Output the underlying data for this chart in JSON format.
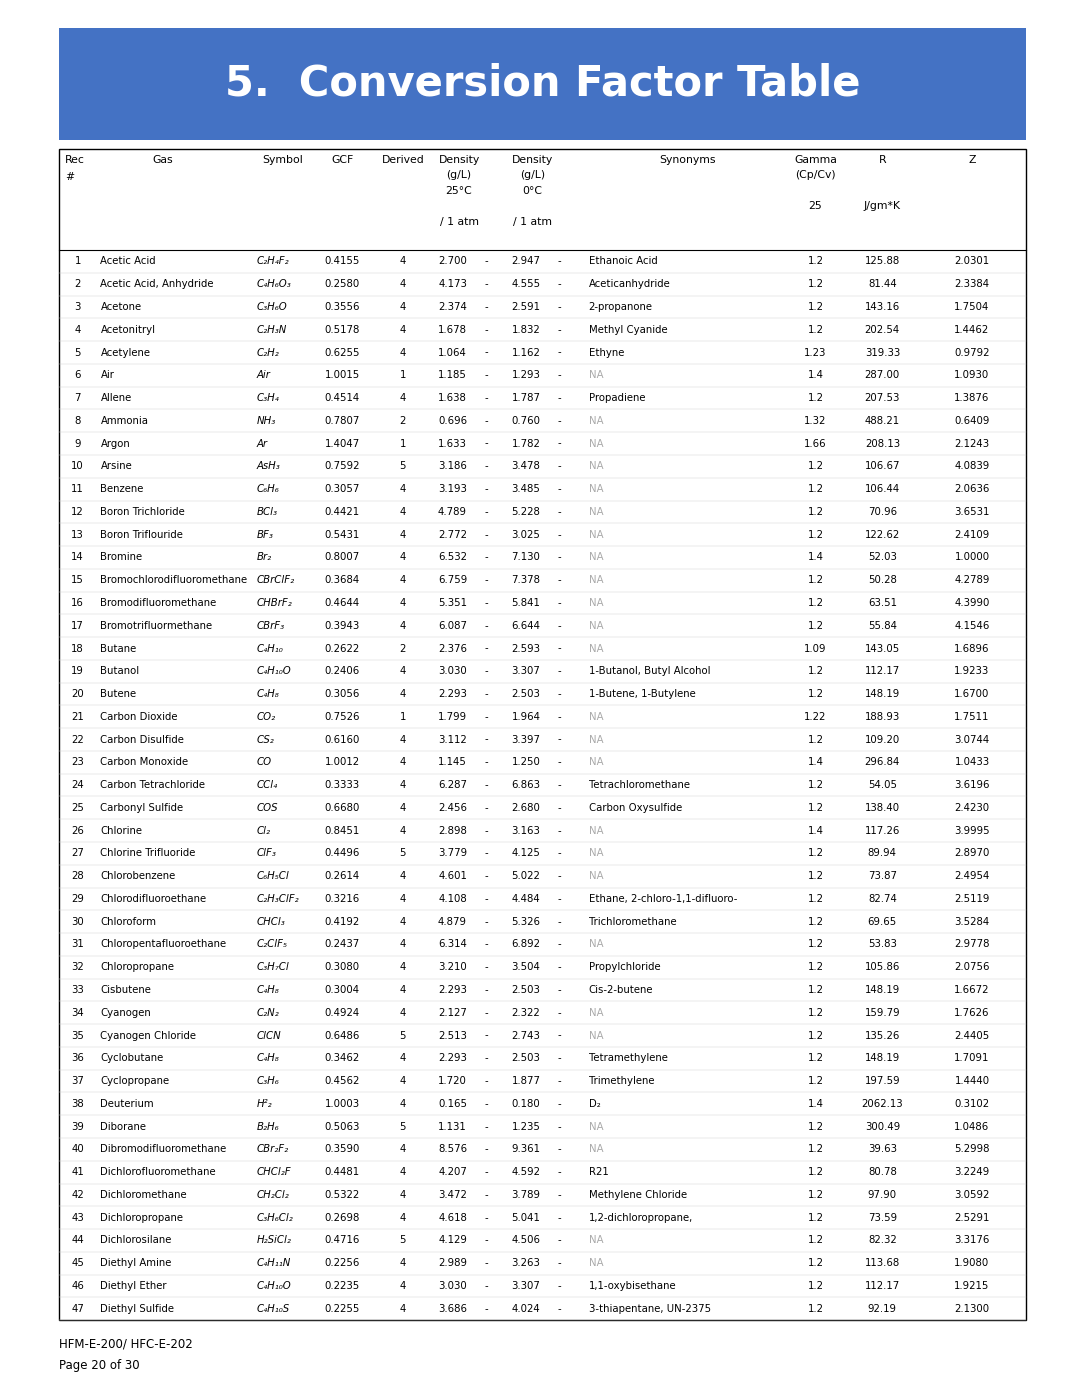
{
  "title": "5.  Conversion Factor Table",
  "title_bg_color": "#4472C4",
  "title_text_color": "#FFFFFF",
  "footer_line1": "HFM-E-200/ HFC-E-202",
  "footer_line2": "Page 20 of 30",
  "rows": [
    [
      1,
      "Acetic Acid",
      "C₂H₄F₂",
      "0.4155",
      "4",
      "2.700",
      "2.947",
      "Ethanoic Acid",
      "1.2",
      "125.88",
      "2.0301"
    ],
    [
      2,
      "Acetic Acid, Anhydride",
      "C₄H₆O₃",
      "0.2580",
      "4",
      "4.173",
      "4.555",
      "Aceticanhydride",
      "1.2",
      "81.44",
      "2.3384"
    ],
    [
      3,
      "Acetone",
      "C₃H₆O",
      "0.3556",
      "4",
      "2.374",
      "2.591",
      "2-propanone",
      "1.2",
      "143.16",
      "1.7504"
    ],
    [
      4,
      "Acetonitryl",
      "C₂H₃N",
      "0.5178",
      "4",
      "1.678",
      "1.832",
      "Methyl Cyanide",
      "1.2",
      "202.54",
      "1.4462"
    ],
    [
      5,
      "Acetylene",
      "C₂H₂",
      "0.6255",
      "4",
      "1.064",
      "1.162",
      "Ethyne",
      "1.23",
      "319.33",
      "0.9792"
    ],
    [
      6,
      "Air",
      "Air",
      "1.0015",
      "1",
      "1.185",
      "1.293",
      "NA",
      "1.4",
      "287.00",
      "1.0930"
    ],
    [
      7,
      "Allene",
      "C₃H₄",
      "0.4514",
      "4",
      "1.638",
      "1.787",
      "Propadiene",
      "1.2",
      "207.53",
      "1.3876"
    ],
    [
      8,
      "Ammonia",
      "NH₃",
      "0.7807",
      "2",
      "0.696",
      "0.760",
      "NA",
      "1.32",
      "488.21",
      "0.6409"
    ],
    [
      9,
      "Argon",
      "Ar",
      "1.4047",
      "1",
      "1.633",
      "1.782",
      "NA",
      "1.66",
      "208.13",
      "2.1243"
    ],
    [
      10,
      "Arsine",
      "AsH₃",
      "0.7592",
      "5",
      "3.186",
      "3.478",
      "NA",
      "1.2",
      "106.67",
      "4.0839"
    ],
    [
      11,
      "Benzene",
      "C₆H₆",
      "0.3057",
      "4",
      "3.193",
      "3.485",
      "NA",
      "1.2",
      "106.44",
      "2.0636"
    ],
    [
      12,
      "Boron Trichloride",
      "BCl₃",
      "0.4421",
      "4",
      "4.789",
      "5.228",
      "NA",
      "1.2",
      "70.96",
      "3.6531"
    ],
    [
      13,
      "Boron Triflouride",
      "BF₃",
      "0.5431",
      "4",
      "2.772",
      "3.025",
      "NA",
      "1.2",
      "122.62",
      "2.4109"
    ],
    [
      14,
      "Bromine",
      "Br₂",
      "0.8007",
      "4",
      "6.532",
      "7.130",
      "NA",
      "1.4",
      "52.03",
      "1.0000"
    ],
    [
      15,
      "Bromochlorodifluoromethane",
      "CBrClF₂",
      "0.3684",
      "4",
      "6.759",
      "7.378",
      "NA",
      "1.2",
      "50.28",
      "4.2789"
    ],
    [
      16,
      "Bromodifluoromethane",
      "CHBrF₂",
      "0.4644",
      "4",
      "5.351",
      "5.841",
      "NA",
      "1.2",
      "63.51",
      "4.3990"
    ],
    [
      17,
      "Bromotrifluormethane",
      "CBrF₃",
      "0.3943",
      "4",
      "6.087",
      "6.644",
      "NA",
      "1.2",
      "55.84",
      "4.1546"
    ],
    [
      18,
      "Butane",
      "C₄H₁₀",
      "0.2622",
      "2",
      "2.376",
      "2.593",
      "NA",
      "1.09",
      "143.05",
      "1.6896"
    ],
    [
      19,
      "Butanol",
      "C₄H₁₀O",
      "0.2406",
      "4",
      "3.030",
      "3.307",
      "1-Butanol, Butyl Alcohol",
      "1.2",
      "112.17",
      "1.9233"
    ],
    [
      20,
      "Butene",
      "C₄H₈",
      "0.3056",
      "4",
      "2.293",
      "2.503",
      "1-Butene, 1-Butylene",
      "1.2",
      "148.19",
      "1.6700"
    ],
    [
      21,
      "Carbon Dioxide",
      "CO₂",
      "0.7526",
      "1",
      "1.799",
      "1.964",
      "NA",
      "1.22",
      "188.93",
      "1.7511"
    ],
    [
      22,
      "Carbon Disulfide",
      "CS₂",
      "0.6160",
      "4",
      "3.112",
      "3.397",
      "NA",
      "1.2",
      "109.20",
      "3.0744"
    ],
    [
      23,
      "Carbon Monoxide",
      "CO",
      "1.0012",
      "4",
      "1.145",
      "1.250",
      "NA",
      "1.4",
      "296.84",
      "1.0433"
    ],
    [
      24,
      "Carbon Tetrachloride",
      "CCl₄",
      "0.3333",
      "4",
      "6.287",
      "6.863",
      "Tetrachloromethane",
      "1.2",
      "54.05",
      "3.6196"
    ],
    [
      25,
      "Carbonyl Sulfide",
      "COS",
      "0.6680",
      "4",
      "2.456",
      "2.680",
      "Carbon Oxysulfide",
      "1.2",
      "138.40",
      "2.4230"
    ],
    [
      26,
      "Chlorine",
      "Cl₂",
      "0.8451",
      "4",
      "2.898",
      "3.163",
      "NA",
      "1.4",
      "117.26",
      "3.9995"
    ],
    [
      27,
      "Chlorine Trifluoride",
      "ClF₃",
      "0.4496",
      "5",
      "3.779",
      "4.125",
      "NA",
      "1.2",
      "89.94",
      "2.8970"
    ],
    [
      28,
      "Chlorobenzene",
      "C₆H₅Cl",
      "0.2614",
      "4",
      "4.601",
      "5.022",
      "NA",
      "1.2",
      "73.87",
      "2.4954"
    ],
    [
      29,
      "Chlorodifluoroethane",
      "C₂H₃ClF₂",
      "0.3216",
      "4",
      "4.108",
      "4.484",
      "Ethane, 2-chloro-1,1-difluoro-",
      "1.2",
      "82.74",
      "2.5119"
    ],
    [
      30,
      "Chloroform",
      "CHCl₃",
      "0.4192",
      "4",
      "4.879",
      "5.326",
      "Trichloromethane",
      "1.2",
      "69.65",
      "3.5284"
    ],
    [
      31,
      "Chloropentafluoroethane",
      "C₂ClF₅",
      "0.2437",
      "4",
      "6.314",
      "6.892",
      "NA",
      "1.2",
      "53.83",
      "2.9778"
    ],
    [
      32,
      "Chloropropane",
      "C₃H₇Cl",
      "0.3080",
      "4",
      "3.210",
      "3.504",
      "Propylchloride",
      "1.2",
      "105.86",
      "2.0756"
    ],
    [
      33,
      "Cisbutene",
      "C₄H₈",
      "0.3004",
      "4",
      "2.293",
      "2.503",
      "Cis-2-butene",
      "1.2",
      "148.19",
      "1.6672"
    ],
    [
      34,
      "Cyanogen",
      "C₂N₂",
      "0.4924",
      "4",
      "2.127",
      "2.322",
      "NA",
      "1.2",
      "159.79",
      "1.7626"
    ],
    [
      35,
      "Cyanogen Chloride",
      "ClCN",
      "0.6486",
      "5",
      "2.513",
      "2.743",
      "NA",
      "1.2",
      "135.26",
      "2.4405"
    ],
    [
      36,
      "Cyclobutane",
      "C₄H₈",
      "0.3462",
      "4",
      "2.293",
      "2.503",
      "Tetramethylene",
      "1.2",
      "148.19",
      "1.7091"
    ],
    [
      37,
      "Cyclopropane",
      "C₃H₆",
      "0.4562",
      "4",
      "1.720",
      "1.877",
      "Trimethylene",
      "1.2",
      "197.59",
      "1.4440"
    ],
    [
      38,
      "Deuterium",
      "H²₂",
      "1.0003",
      "4",
      "0.165",
      "0.180",
      "D₂",
      "1.4",
      "2062.13",
      "0.3102"
    ],
    [
      39,
      "Diborane",
      "B₂H₆",
      "0.5063",
      "5",
      "1.131",
      "1.235",
      "NA",
      "1.2",
      "300.49",
      "1.0486"
    ],
    [
      40,
      "Dibromodifluoromethane",
      "CBr₂F₂",
      "0.3590",
      "4",
      "8.576",
      "9.361",
      "NA",
      "1.2",
      "39.63",
      "5.2998"
    ],
    [
      41,
      "Dichlorofluoromethane",
      "CHCl₂F",
      "0.4481",
      "4",
      "4.207",
      "4.592",
      "R21",
      "1.2",
      "80.78",
      "3.2249"
    ],
    [
      42,
      "Dichloromethane",
      "CH₂Cl₂",
      "0.5322",
      "4",
      "3.472",
      "3.789",
      "Methylene Chloride",
      "1.2",
      "97.90",
      "3.0592"
    ],
    [
      43,
      "Dichloropropane",
      "C₃H₆Cl₂",
      "0.2698",
      "4",
      "4.618",
      "5.041",
      "1,2-dichloropropane,",
      "1.2",
      "73.59",
      "2.5291"
    ],
    [
      44,
      "Dichlorosilane",
      "H₂SiCl₂",
      "0.4716",
      "5",
      "4.129",
      "4.506",
      "NA",
      "1.2",
      "82.32",
      "3.3176"
    ],
    [
      45,
      "Diethyl Amine",
      "C₄H₁₁N",
      "0.2256",
      "4",
      "2.989",
      "3.263",
      "NA",
      "1.2",
      "113.68",
      "1.9080"
    ],
    [
      46,
      "Diethyl Ether",
      "C₄H₁₀O",
      "0.2235",
      "4",
      "3.030",
      "3.307",
      "1,1-oxybisethane",
      "1.2",
      "112.17",
      "1.9215"
    ],
    [
      47,
      "Diethyl Sulfide",
      "C₄H₁₀S",
      "0.2255",
      "4",
      "3.686",
      "4.024",
      "3-thiapentane, UN-2375",
      "1.2",
      "92.19",
      "2.1300"
    ]
  ],
  "na_color": "#AAAAAA",
  "bg_color": "#FFFFFF",
  "border_color": "#000000",
  "separator_color": "#CCCCCC",
  "title_fs": 30,
  "header_fs": 7.8,
  "data_fs": 7.3,
  "footer_fs": 8.5
}
